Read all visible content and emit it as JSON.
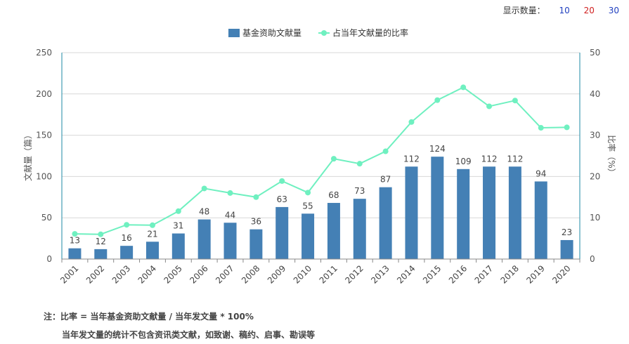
{
  "controls": {
    "label": "显示数量：",
    "options": [
      {
        "label": "10",
        "color": "#1f3fbf"
      },
      {
        "label": "20",
        "color": "#d02020"
      },
      {
        "label": "30",
        "color": "#1f3fbf"
      }
    ]
  },
  "notes": {
    "line1": "注：比率 = 当年基金资助文献量 / 当年发文量 * 100%",
    "line2": "当年发文量的统计不包含资讯类文献，如致谢、稿约、启事、勘误等"
  },
  "chart_data": {
    "type": "bar",
    "categories": [
      "2001",
      "2002",
      "2003",
      "2004",
      "2005",
      "2006",
      "2007",
      "2008",
      "2009",
      "2010",
      "2011",
      "2012",
      "2013",
      "2014",
      "2015",
      "2016",
      "2017",
      "2018",
      "2019",
      "2020"
    ],
    "series": [
      {
        "name": "基金资助文献量",
        "type": "bar",
        "axis": "left",
        "color": "#4480b5",
        "values": [
          13,
          12,
          16,
          21,
          31,
          48,
          44,
          36,
          63,
          55,
          68,
          73,
          87,
          112,
          124,
          109,
          112,
          112,
          94,
          23
        ]
      },
      {
        "name": "占当年文献量的比率",
        "type": "line",
        "axis": "right",
        "color": "#6ff0c0",
        "values": [
          6.1,
          6.0,
          8.3,
          8.2,
          11.6,
          17.1,
          16.0,
          15.0,
          18.9,
          16.1,
          24.3,
          23.1,
          26.1,
          33.2,
          38.5,
          41.6,
          37.0,
          38.4,
          31.8,
          31.9
        ]
      }
    ],
    "ylabel": "文献量（篇）",
    "y2label": "比率（%）",
    "ylim": [
      0,
      250
    ],
    "y2lim": [
      0,
      50
    ],
    "yticks": [
      0,
      50,
      100,
      150,
      200,
      250
    ],
    "y2ticks": [
      0,
      10,
      20,
      30,
      40,
      50
    ],
    "grid": true,
    "legend": "top-center"
  }
}
